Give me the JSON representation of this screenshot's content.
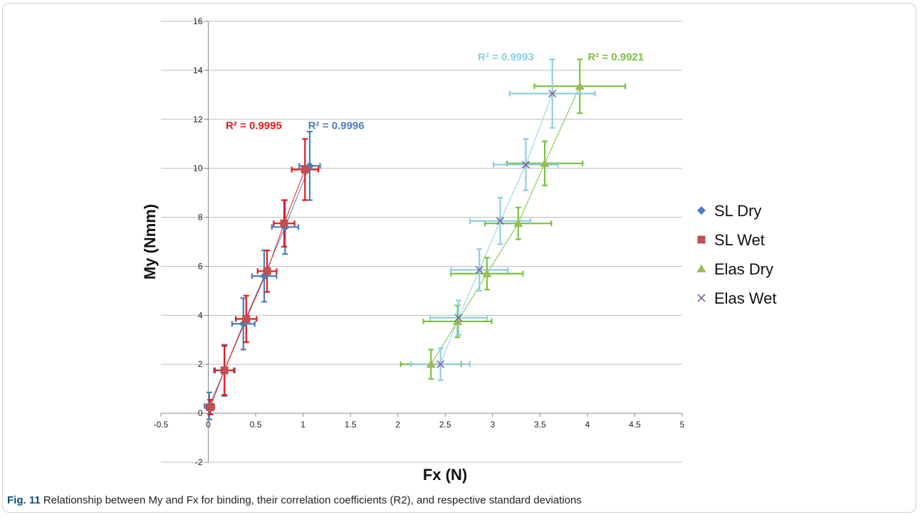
{
  "caption": {
    "figure_label": "Fig. 11",
    "text": "Relationship between My and Fx for binding, their correlation coefficients (R2), and respective standard deviations"
  },
  "chart_data": {
    "type": "scatter",
    "xlabel": "Fx (N)",
    "ylabel": "My (Nmm)",
    "xlim": [
      -0.5,
      5
    ],
    "ylim": [
      -2,
      16
    ],
    "xticks": [
      -0.5,
      0,
      0.5,
      1,
      1.5,
      2,
      2.5,
      3,
      3.5,
      4,
      4.5,
      5
    ],
    "yticks": [
      -2,
      0,
      2,
      4,
      6,
      8,
      10,
      12,
      14,
      16
    ],
    "xtick_labels": [
      "-0.5",
      "0",
      "0.5",
      "1",
      "1.5",
      "2",
      "2.5",
      "3",
      "3.5",
      "4",
      "4.5",
      "5"
    ],
    "ytick_labels": [
      "-2",
      "0",
      "2",
      "4",
      "6",
      "8",
      "10",
      "12",
      "14",
      "16"
    ],
    "grid": "horizontal",
    "legend_position": "right",
    "series": [
      {
        "name": "SL Dry",
        "marker": "diamond",
        "color": "#4a7ebb",
        "errcolor": "#4a7ebb",
        "linecolor": "#4a7ebb",
        "x": [
          0.01,
          0.17,
          0.37,
          0.59,
          0.81,
          1.07
        ],
        "y": [
          0.3,
          1.75,
          3.65,
          5.6,
          7.6,
          10.1
        ],
        "xerr": [
          0.05,
          0.11,
          0.12,
          0.13,
          0.14,
          0.11
        ],
        "yerr": [
          0.55,
          1.05,
          1.05,
          1.05,
          1.1,
          1.4
        ]
      },
      {
        "name": "SL Wet",
        "marker": "square",
        "color": "#c0504d",
        "errcolor": "#e41a1c",
        "linecolor": "#e41a1c",
        "x": [
          0.02,
          0.17,
          0.4,
          0.62,
          0.8,
          1.02
        ],
        "y": [
          0.25,
          1.75,
          3.85,
          5.8,
          7.75,
          9.95
        ],
        "xerr": [
          0.04,
          0.1,
          0.11,
          0.1,
          0.11,
          0.14
        ],
        "yerr": [
          0.3,
          1.0,
          0.95,
          0.85,
          0.95,
          1.25
        ]
      },
      {
        "name": "Elas Dry",
        "marker": "triangle",
        "color": "#9bbb59",
        "errcolor": "#7ac143",
        "linecolor": "#7ac143",
        "x": [
          2.35,
          2.63,
          2.94,
          3.27,
          3.55,
          3.92
        ],
        "y": [
          2.0,
          3.75,
          5.7,
          7.75,
          10.2,
          13.35
        ],
        "xerr": [
          0.32,
          0.36,
          0.38,
          0.35,
          0.4,
          0.48
        ],
        "yerr": [
          0.6,
          0.65,
          0.65,
          0.65,
          0.9,
          1.1
        ]
      },
      {
        "name": "Elas Wet",
        "marker": "x",
        "color": "#8064a2",
        "errcolor": "#8ccfe0",
        "linecolor": "#8ccfe0",
        "x": [
          2.45,
          2.64,
          2.86,
          3.08,
          3.35,
          3.63
        ],
        "y": [
          2.0,
          3.9,
          5.85,
          7.85,
          10.15,
          13.05
        ],
        "xerr": [
          0.31,
          0.3,
          0.3,
          0.32,
          0.34,
          0.45
        ],
        "yerr": [
          0.65,
          0.7,
          0.85,
          0.95,
          1.05,
          1.4
        ]
      }
    ],
    "annotations": [
      {
        "text": "R² = 0.9995",
        "color": "#e41a1c",
        "x": 0.48,
        "y": 11.6
      },
      {
        "text": "R² = 0.9996",
        "color": "#4a7ebb",
        "x": 1.35,
        "y": 11.6
      },
      {
        "text": "R² = 0.9993",
        "color": "#8ccfe0",
        "x": 3.14,
        "y": 14.4
      },
      {
        "text": "R² = 0.9921",
        "color": "#7ac143",
        "x": 4.3,
        "y": 14.4
      }
    ]
  }
}
